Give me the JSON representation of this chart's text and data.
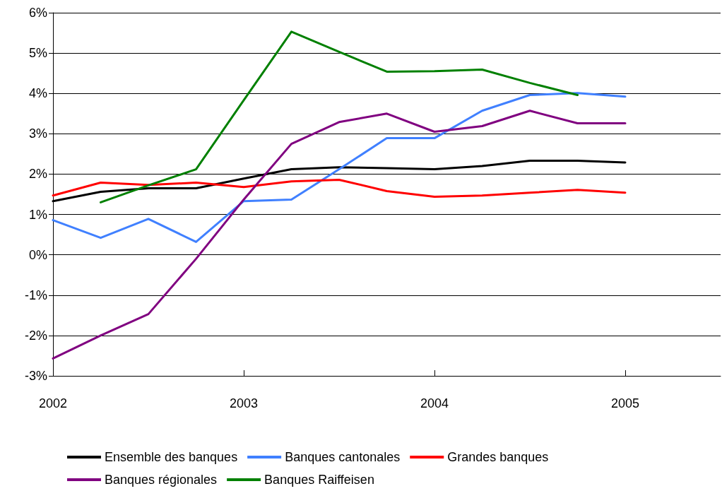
{
  "chart_data": {
    "type": "line",
    "x": [
      2002,
      2002.25,
      2002.5,
      2002.75,
      2003,
      2003.25,
      2003.5,
      2003.75,
      2004,
      2004.25,
      2004.5,
      2004.75,
      2005
    ],
    "series": [
      {
        "name": "Ensemble des banques",
        "color": "#000000",
        "values": [
          1.33,
          1.56,
          1.65,
          1.65,
          1.89,
          2.12,
          2.17,
          2.15,
          2.12,
          2.2,
          2.33,
          2.33,
          2.29
        ]
      },
      {
        "name": "Banques cantonales",
        "color": "#4080ff",
        "values": [
          0.86,
          0.42,
          0.89,
          0.32,
          1.33,
          1.37,
          2.12,
          2.89,
          2.89,
          3.57,
          3.96,
          4.01,
          3.92
        ]
      },
      {
        "name": "Grandes banques",
        "color": "#ff0000",
        "values": [
          1.47,
          1.79,
          1.73,
          1.79,
          1.68,
          1.82,
          1.86,
          1.58,
          1.44,
          1.47,
          1.54,
          1.61,
          1.54
        ]
      },
      {
        "name": "Banques régionales",
        "color": "#800080",
        "values": [
          -2.57,
          -2.0,
          -1.47,
          -0.1,
          1.37,
          2.75,
          3.29,
          3.5,
          3.05,
          3.19,
          3.57,
          3.26,
          3.26
        ]
      },
      {
        "name": "Banques Raiffeisen",
        "color": "#008000",
        "values": [
          null,
          1.3,
          1.72,
          2.12,
          3.83,
          5.53,
          5.03,
          4.54,
          4.55,
          4.59,
          4.26,
          3.96,
          null
        ]
      }
    ],
    "xlim": [
      2002,
      2005.5
    ],
    "xticks": [
      2002,
      2003,
      2004,
      2005
    ],
    "ylim": [
      -3,
      6
    ],
    "yticks": [
      {
        "value": -3,
        "label": "-3%"
      },
      {
        "value": -2,
        "label": "-2%"
      },
      {
        "value": -1,
        "label": "-1%"
      },
      {
        "value": 0,
        "label": "0%"
      },
      {
        "value": 1,
        "label": "1%"
      },
      {
        "value": 2,
        "label": "2%"
      },
      {
        "value": 3,
        "label": "3%"
      },
      {
        "value": 4,
        "label": "4%"
      },
      {
        "value": 5,
        "label": "5%"
      },
      {
        "value": 6,
        "label": "6%"
      }
    ],
    "grid": "y",
    "legend": "bottom",
    "marker": "none",
    "line_style": "solid"
  }
}
